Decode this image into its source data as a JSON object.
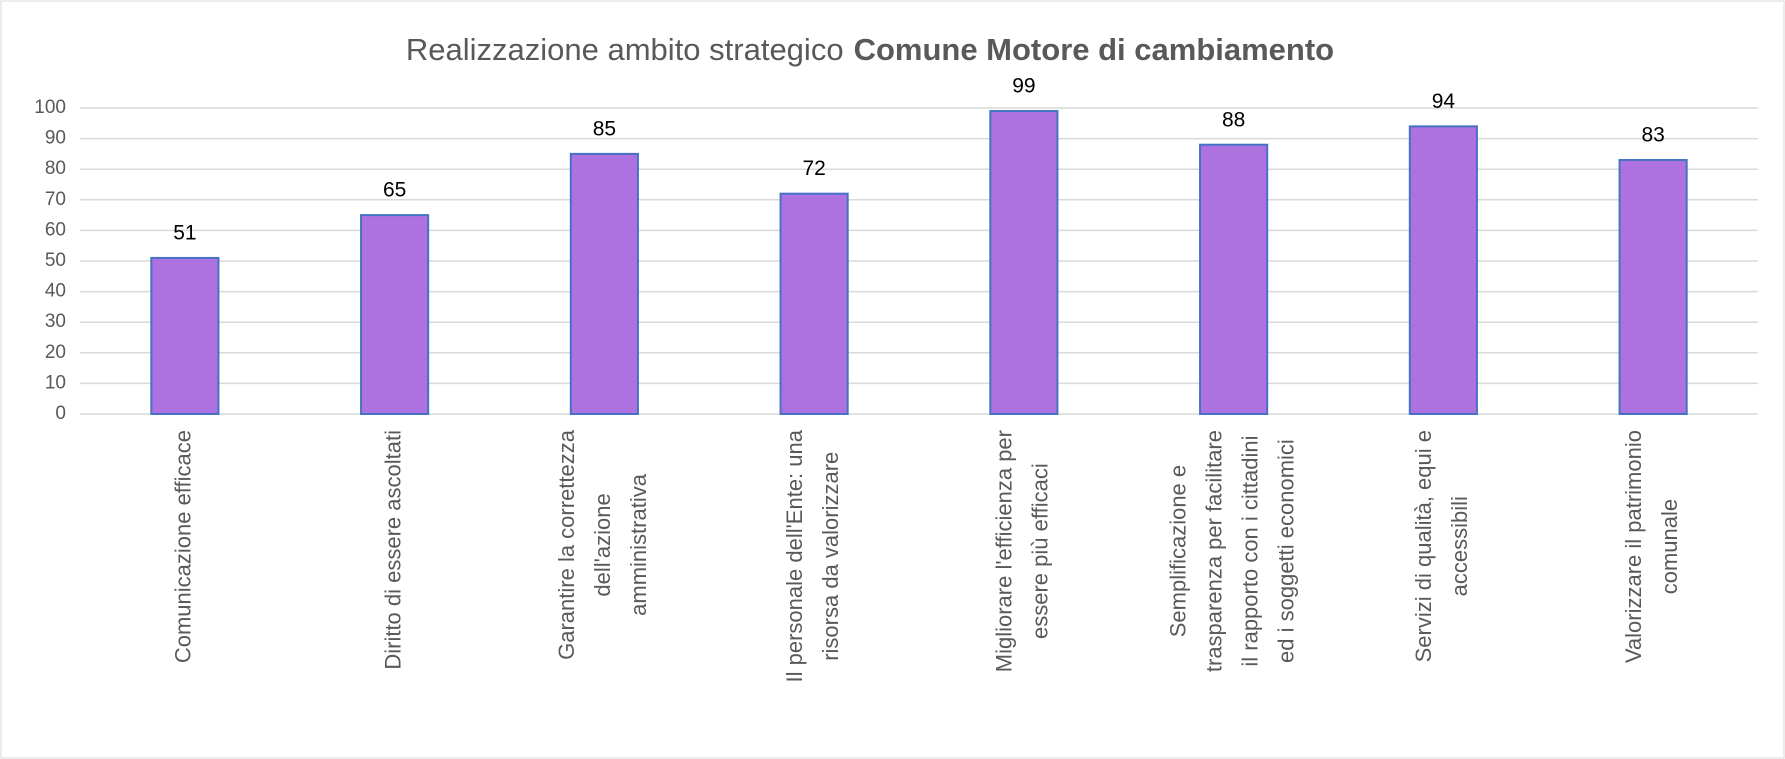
{
  "chart_data": {
    "type": "bar",
    "title": [
      "Realizzazione ambito strategico",
      "Comune Motore di cambiamento"
    ],
    "categories": [
      [
        "Comunicazione efficace"
      ],
      [
        "Diritto di essere ascoltati"
      ],
      [
        "Garantire la correttezza",
        "dell'azione",
        "amministrativa"
      ],
      [
        "Il personale dell'Ente: una",
        "risorsa da valorizzare"
      ],
      [
        "Migliorare l'efficienza per",
        "essere più efficaci"
      ],
      [
        "Semplificazione e",
        "trasparenza per facilitare",
        "il rapporto con i  cittadini",
        "ed i soggetti economici"
      ],
      [
        "Servizi di qualità, equi e",
        "accessibili"
      ],
      [
        "Valorizzare il patrimonio",
        "comunale"
      ]
    ],
    "values": [
      51,
      65,
      85,
      72,
      99,
      88,
      94,
      83
    ],
    "color": "#ae71e0",
    "edge_color": "#4472c4",
    "ylim": [
      0,
      100
    ],
    "yticks": [
      0,
      10,
      20,
      30,
      40,
      50,
      60,
      70,
      80,
      90,
      100
    ],
    "grid": true
  }
}
